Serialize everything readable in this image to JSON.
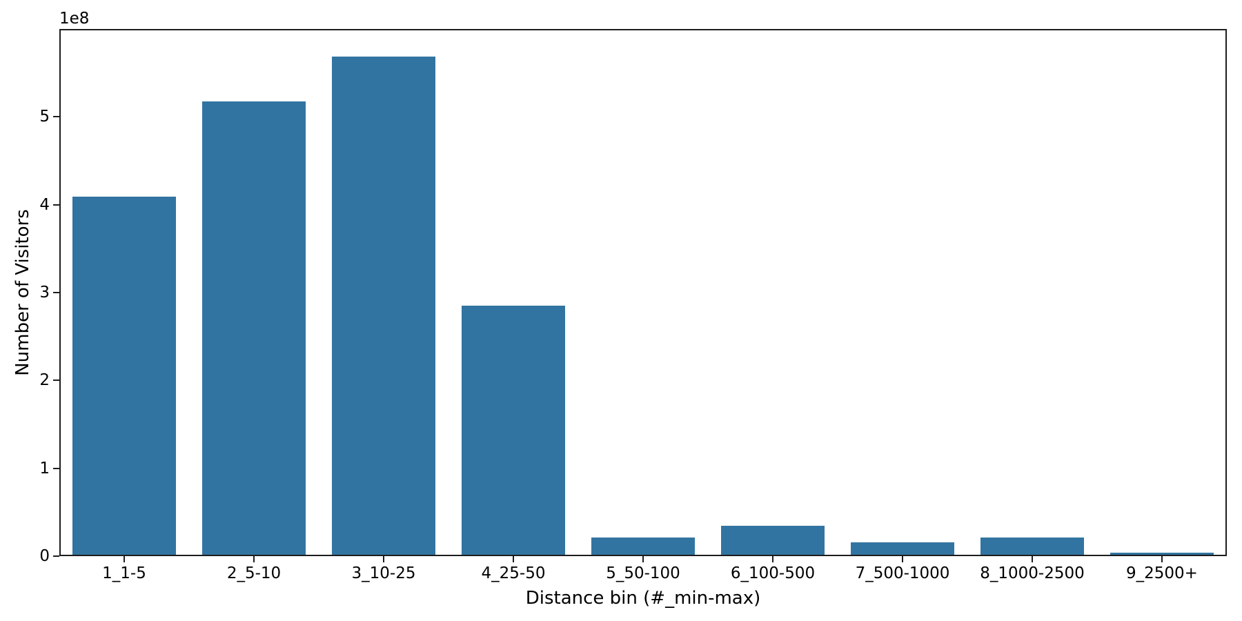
{
  "chart_data": {
    "type": "bar",
    "title": "",
    "xlabel": "Distance bin (#_min-max)",
    "ylabel": "Number of Visitors",
    "y_axis_offset_text": "1e8",
    "categories": [
      "1_1-5",
      "2_5-10",
      "3_10-25",
      "4_25-50",
      "5_50-100",
      "6_100-500",
      "7_500-1000",
      "8_1000-2500",
      "9_2500+"
    ],
    "values": [
      410000000,
      519000000,
      570000000,
      285000000,
      19500000,
      33500000,
      14000000,
      19500000,
      2500000
    ],
    "values_1e8": [
      4.1,
      5.19,
      5.7,
      2.85,
      0.195,
      0.335,
      0.14,
      0.195,
      0.025
    ],
    "ytick_values_1e8": [
      0,
      1,
      2,
      3,
      4,
      5
    ],
    "ylim": [
      0,
      600000000
    ],
    "bar_width_fraction": 0.8,
    "bar_color": "#3274a1",
    "axis_color": "#1c1c1c",
    "text_color": "#000000",
    "background_color": "#ffffff",
    "grid": false,
    "legend": null
  }
}
